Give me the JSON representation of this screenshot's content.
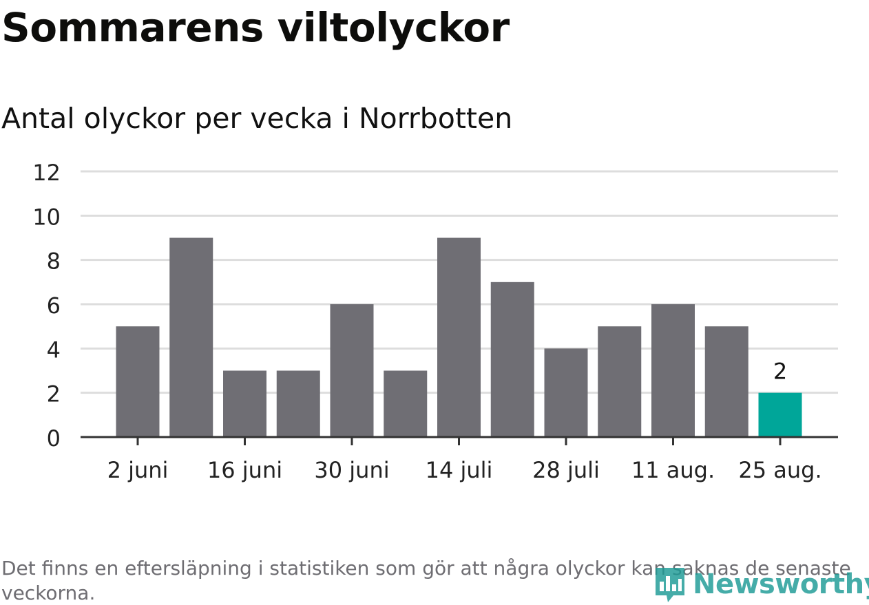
{
  "title": "Sommarens viltolyckor",
  "subtitle": "Antal olyckor per vecka i Norrbotten",
  "footnote": "Det finns en eftersläpning i statistiken som gör att några olyckor kan saknas de senaste veckorna.",
  "logo": {
    "text": "Newsworthy",
    "icon": "newsworthy-chart-icon"
  },
  "colors": {
    "bar": "#6f6e74",
    "highlight": "#00a699",
    "grid": "#dddddd",
    "axis": "#333333",
    "logo": "#1d9a95"
  },
  "chart_data": {
    "type": "bar",
    "title": "Sommarens viltolyckor",
    "subtitle": "Antal olyckor per vecka i Norrbotten",
    "xlabel": "",
    "ylabel": "",
    "x_tick_labels": [
      "2 juni",
      "16 juni",
      "30 juni",
      "14 juli",
      "28 juli",
      "11 aug.",
      "25 aug."
    ],
    "y_ticks": [
      0,
      2,
      4,
      6,
      8,
      10,
      12
    ],
    "ylim": [
      0,
      12
    ],
    "grid": true,
    "values": [
      5,
      9,
      3,
      3,
      6,
      3,
      9,
      7,
      4,
      5,
      6,
      5,
      2
    ],
    "highlight_index": 12,
    "highlight_label": "2"
  }
}
